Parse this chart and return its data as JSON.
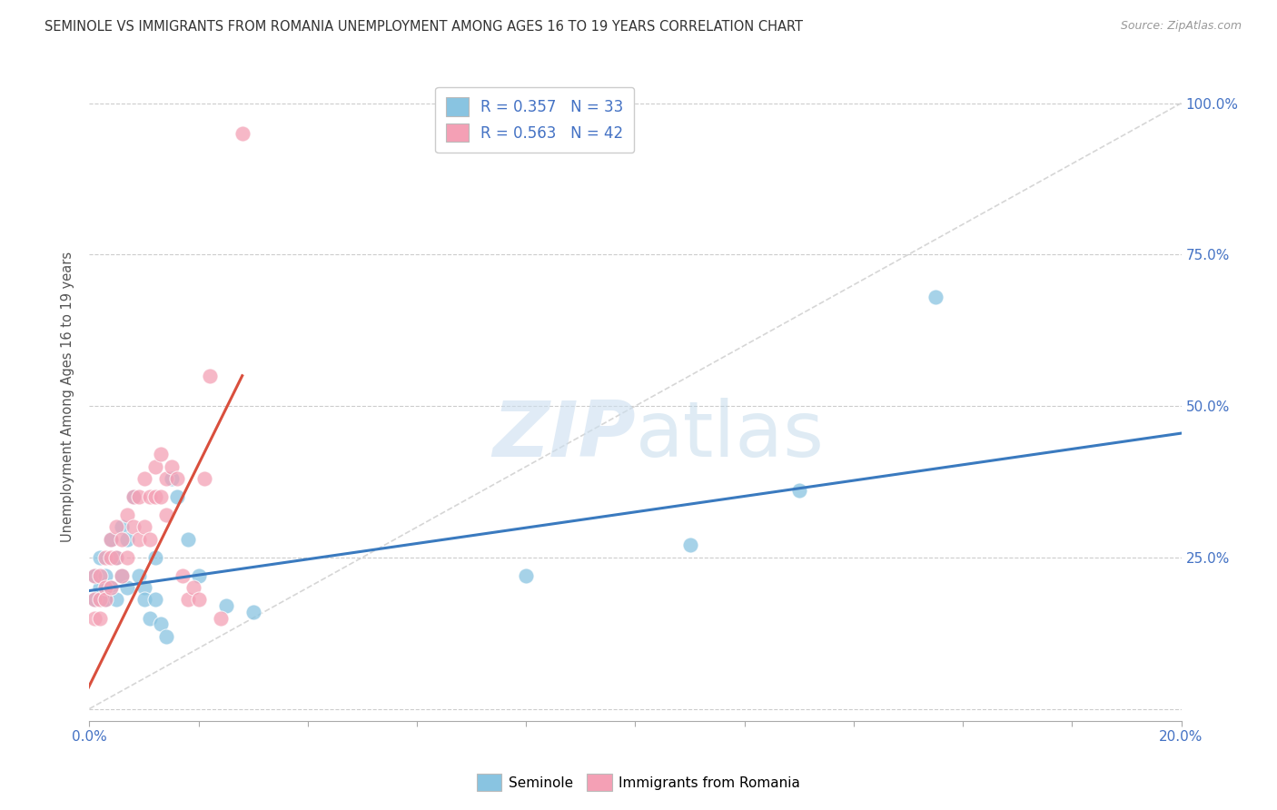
{
  "title": "SEMINOLE VS IMMIGRANTS FROM ROMANIA UNEMPLOYMENT AMONG AGES 16 TO 19 YEARS CORRELATION CHART",
  "source": "Source: ZipAtlas.com",
  "ylabel": "Unemployment Among Ages 16 to 19 years",
  "xlim": [
    0.0,
    0.2
  ],
  "ylim": [
    -0.02,
    1.05
  ],
  "xticks": [
    0.0,
    0.02,
    0.04,
    0.06,
    0.08,
    0.1,
    0.12,
    0.14,
    0.16,
    0.18,
    0.2
  ],
  "yticks": [
    0.0,
    0.25,
    0.5,
    0.75,
    1.0
  ],
  "xtick_labels": [
    "0.0%",
    "",
    "",
    "",
    "",
    "",
    "",
    "",
    "",
    "",
    "20.0%"
  ],
  "right_ytick_labels": [
    "",
    "25.0%",
    "50.0%",
    "75.0%",
    "100.0%"
  ],
  "blue_color": "#89c4e1",
  "pink_color": "#f4a0b5",
  "blue_line_color": "#3a7abf",
  "pink_line_color": "#d94f3d",
  "ref_line_color": "#cccccc",
  "legend_R1": "R = 0.357",
  "legend_N1": "N = 33",
  "legend_R2": "R = 0.563",
  "legend_N2": "N = 42",
  "watermark_zip": "ZIP",
  "watermark_atlas": "atlas",
  "seminole_x": [
    0.001,
    0.001,
    0.002,
    0.002,
    0.003,
    0.003,
    0.004,
    0.004,
    0.005,
    0.005,
    0.006,
    0.006,
    0.007,
    0.007,
    0.008,
    0.009,
    0.01,
    0.01,
    0.011,
    0.012,
    0.012,
    0.013,
    0.014,
    0.015,
    0.016,
    0.018,
    0.02,
    0.025,
    0.03,
    0.08,
    0.11,
    0.13,
    0.155
  ],
  "seminole_y": [
    0.18,
    0.22,
    0.2,
    0.25,
    0.18,
    0.22,
    0.2,
    0.28,
    0.18,
    0.25,
    0.22,
    0.3,
    0.28,
    0.2,
    0.35,
    0.22,
    0.2,
    0.18,
    0.15,
    0.18,
    0.25,
    0.14,
    0.12,
    0.38,
    0.35,
    0.28,
    0.22,
    0.17,
    0.16,
    0.22,
    0.27,
    0.36,
    0.68
  ],
  "romania_x": [
    0.001,
    0.001,
    0.001,
    0.002,
    0.002,
    0.002,
    0.003,
    0.003,
    0.003,
    0.004,
    0.004,
    0.004,
    0.005,
    0.005,
    0.006,
    0.006,
    0.007,
    0.007,
    0.008,
    0.008,
    0.009,
    0.009,
    0.01,
    0.01,
    0.011,
    0.011,
    0.012,
    0.012,
    0.013,
    0.013,
    0.014,
    0.014,
    0.015,
    0.016,
    0.017,
    0.018,
    0.019,
    0.02,
    0.021,
    0.022,
    0.024,
    0.028
  ],
  "romania_y": [
    0.15,
    0.18,
    0.22,
    0.18,
    0.22,
    0.15,
    0.2,
    0.25,
    0.18,
    0.25,
    0.2,
    0.28,
    0.25,
    0.3,
    0.22,
    0.28,
    0.32,
    0.25,
    0.3,
    0.35,
    0.35,
    0.28,
    0.38,
    0.3,
    0.35,
    0.28,
    0.4,
    0.35,
    0.35,
    0.42,
    0.38,
    0.32,
    0.4,
    0.38,
    0.22,
    0.18,
    0.2,
    0.18,
    0.38,
    0.55,
    0.15,
    0.95
  ],
  "blue_trend_x": [
    0.0,
    0.2
  ],
  "blue_trend_y": [
    0.195,
    0.455
  ],
  "pink_trend_x": [
    -0.001,
    0.028
  ],
  "pink_trend_y": [
    0.02,
    0.55
  ],
  "ref_line_x": [
    0.0,
    0.2
  ],
  "ref_line_y": [
    0.0,
    1.0
  ]
}
